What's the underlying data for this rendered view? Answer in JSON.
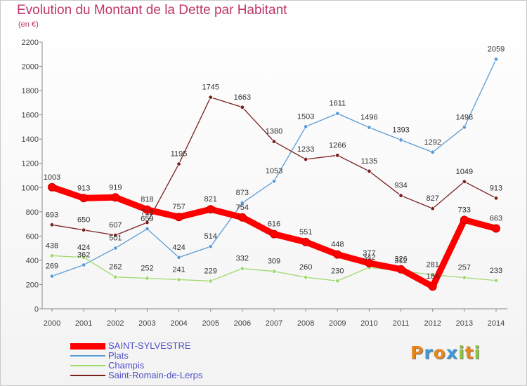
{
  "title": "Evolution du Montant de la Dette par Habitant",
  "subtitle": "(en €)",
  "brand": {
    "text": "Proxiti",
    "letters": [
      {
        "ch": "P",
        "color": "#e8861c"
      },
      {
        "ch": "r",
        "color": "#3f9ad8"
      },
      {
        "ch": "o",
        "color": "#e8861c"
      },
      {
        "ch": "x",
        "color": "#3f9ad8"
      },
      {
        "ch": "i",
        "color": "#8dc63f"
      },
      {
        "ch": "t",
        "color": "#e8861c"
      },
      {
        "ch": "i",
        "color": "#8dc63f"
      }
    ]
  },
  "chart_data": {
    "type": "line",
    "title": "Evolution du Montant de la Dette par Habitant",
    "subtitle": "(en €)",
    "ylim": [
      0,
      2200
    ],
    "yticks": [
      0,
      200,
      400,
      600,
      800,
      1000,
      1200,
      1400,
      1600,
      1800,
      2000,
      2200
    ],
    "x": [
      "2000",
      "2001",
      "2002",
      "2003",
      "2004",
      "2005",
      "2006",
      "2007",
      "2008",
      "2009",
      "2010",
      "2011",
      "2012",
      "2013",
      "2014"
    ],
    "legend_position": "bottom-left",
    "series": [
      {
        "name": "Plats",
        "color": "#5b9bd5",
        "values": [
          269,
          362,
          501,
          659,
          424,
          514,
          873,
          1053,
          1503,
          1611,
          1496,
          1393,
          1292,
          1498,
          2059
        ]
      },
      {
        "name": "Champis",
        "color": "#9fd86a",
        "values": [
          438,
          424,
          262,
          252,
          241,
          229,
          332,
          309,
          260,
          230,
          342,
          312,
          281,
          257,
          233
        ]
      },
      {
        "name": "Saint-Romain-de-Lerps",
        "color": "#7b1e1e",
        "values": [
          693,
          650,
          607,
          712,
          1195,
          1745,
          1663,
          1380,
          1233,
          1266,
          1135,
          934,
          827,
          1049,
          913
        ]
      },
      {
        "name": "SAINT-SYLVESTRE",
        "color": "#ff0000",
        "values": [
          1003,
          913,
          919,
          818,
          757,
          821,
          754,
          616,
          551,
          448,
          377,
          326,
          184,
          733,
          663
        ]
      }
    ]
  }
}
